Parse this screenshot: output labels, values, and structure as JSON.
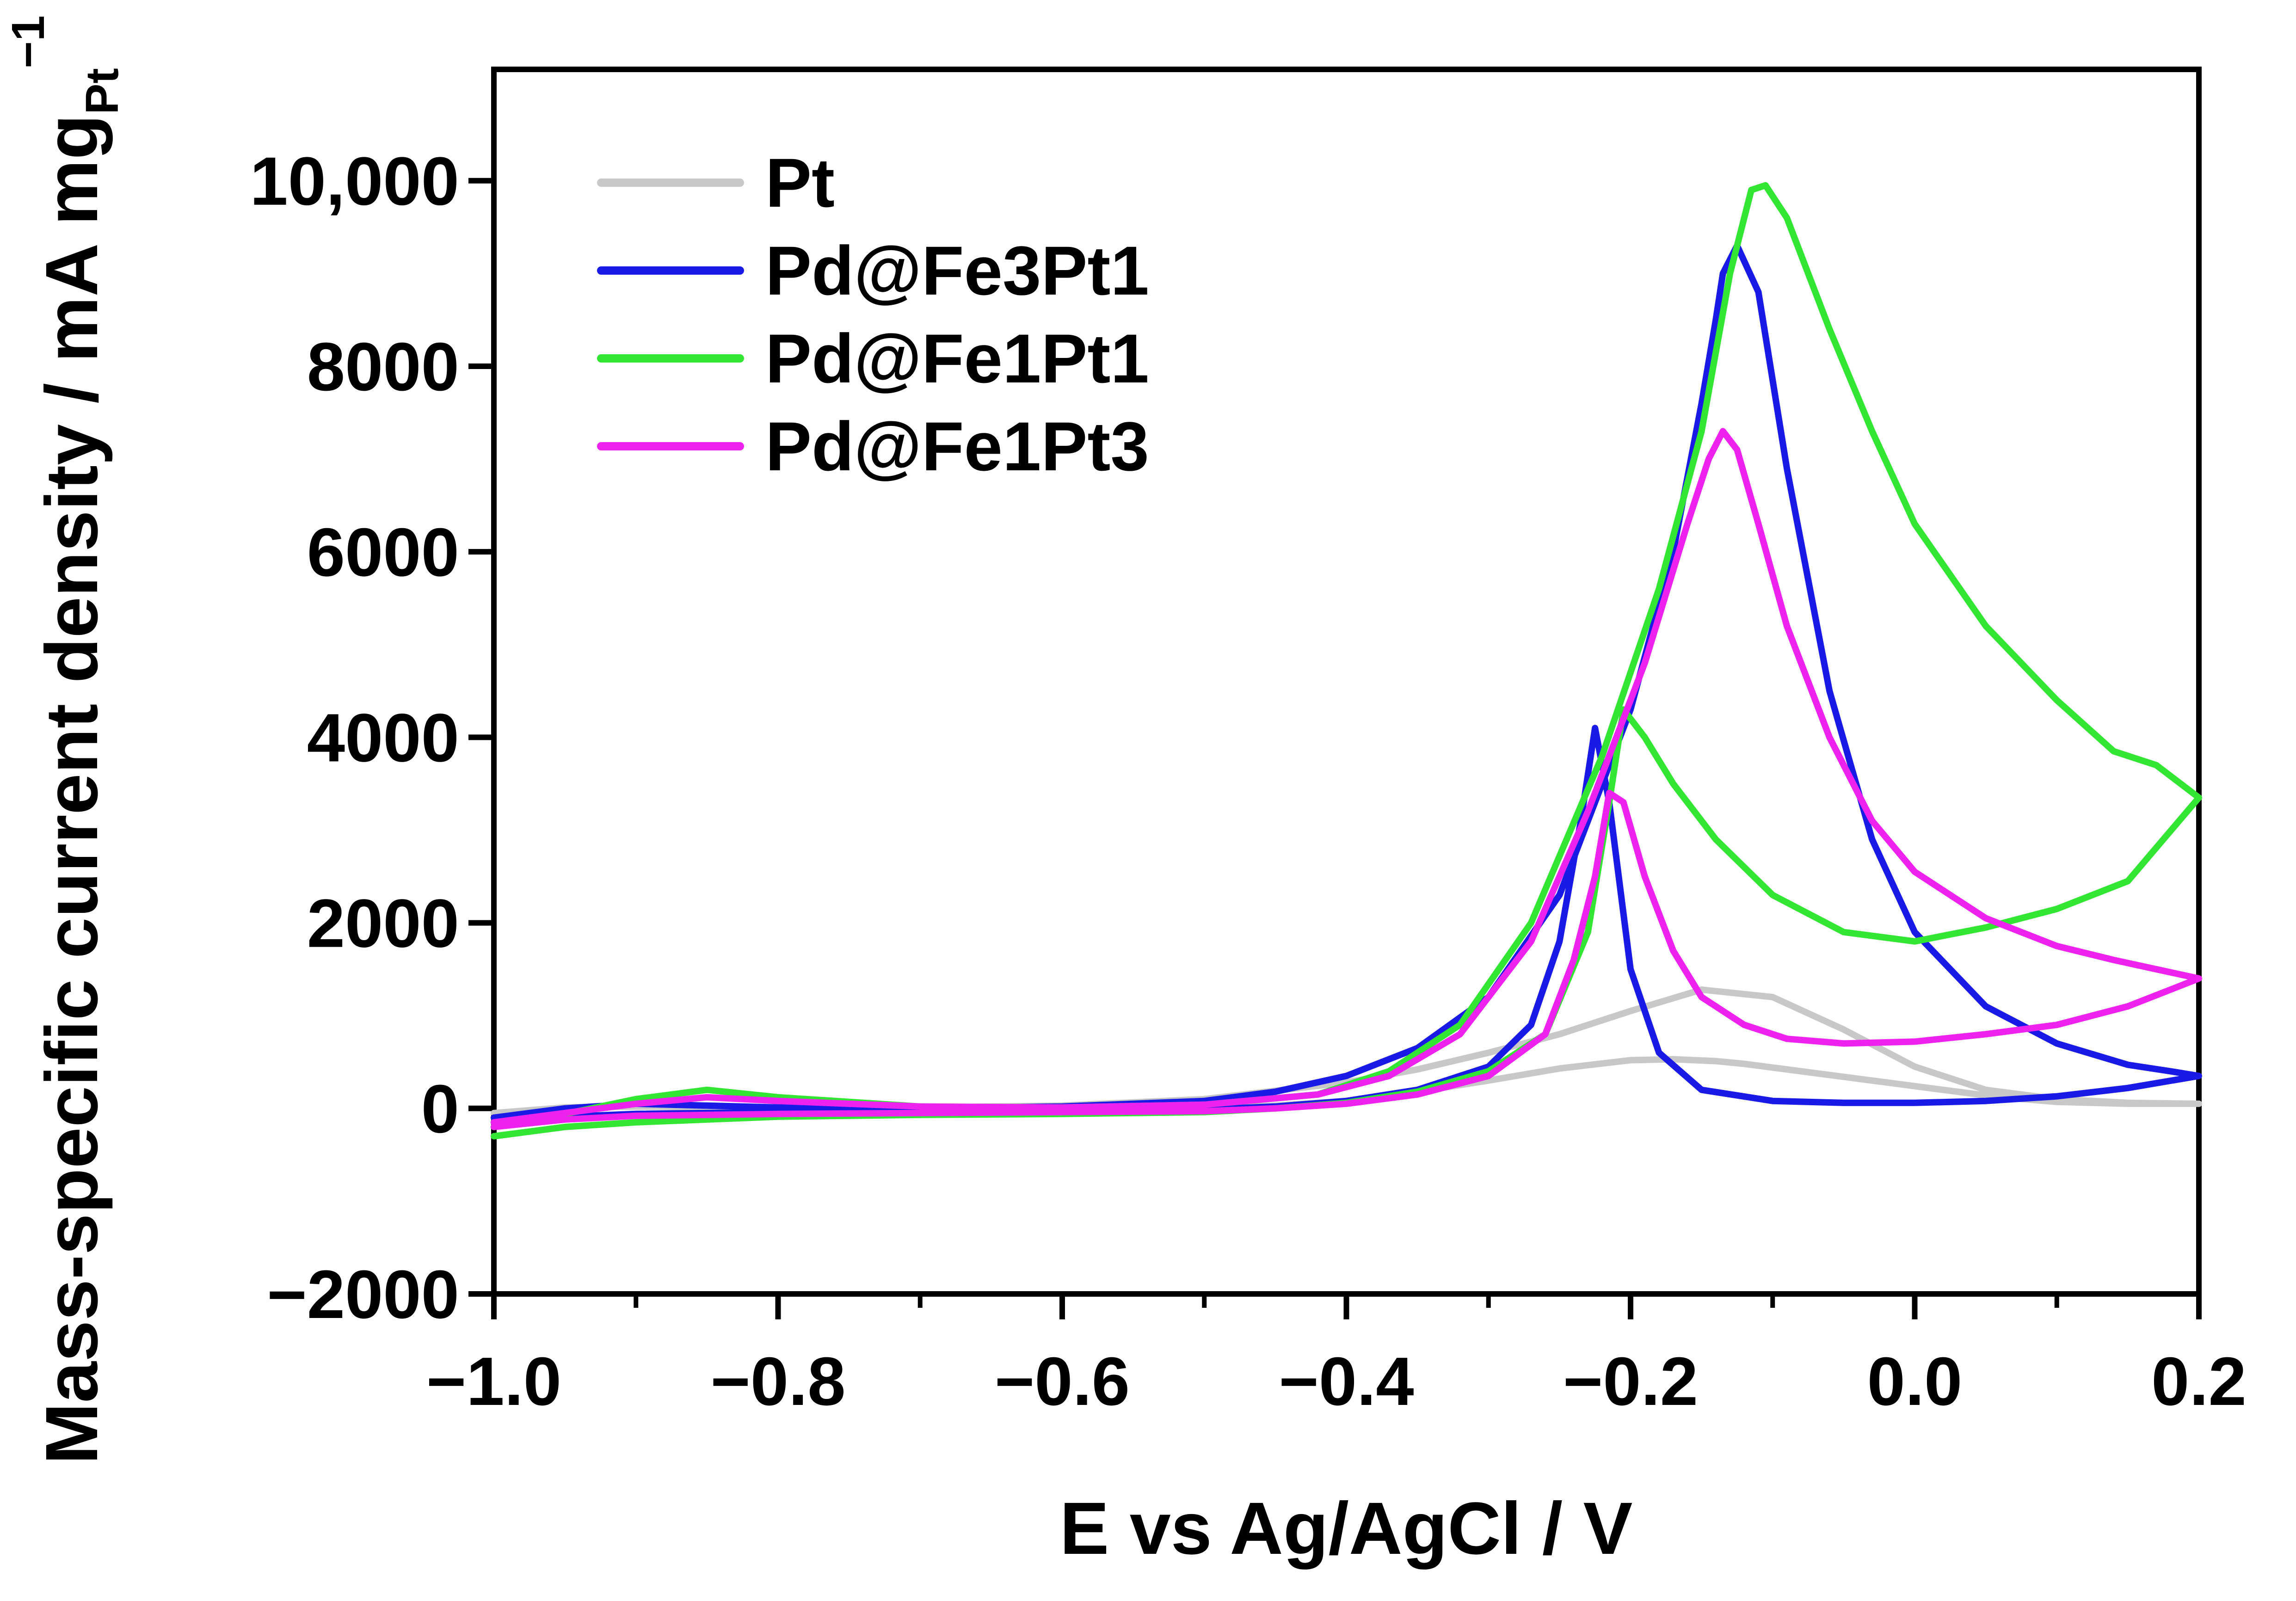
{
  "chart_data": {
    "type": "line",
    "title": "",
    "xlabel": "E vs Ag/AgCl / V",
    "ylabel": {
      "main": "Mass-specific current density / mA mg",
      "subscript": "Pt",
      "superscript": "−1"
    },
    "xlim": [
      -1.0,
      0.2
    ],
    "ylim": [
      -2000,
      11200
    ],
    "x_ticks": [
      -1.0,
      -0.8,
      -0.6,
      -0.4,
      -0.2,
      0.0,
      0.2
    ],
    "x_tick_labels": [
      "−1.0",
      "−0.8",
      "−0.6",
      "−0.4",
      "−0.2",
      "0.0",
      "0.2"
    ],
    "x_minor_ticks": [
      -0.9,
      -0.7,
      -0.5,
      -0.3,
      -0.1,
      0.1
    ],
    "y_ticks": [
      -2000,
      0,
      2000,
      4000,
      6000,
      8000,
      10000
    ],
    "y_tick_labels": [
      "−2000",
      "0",
      "2000",
      "4000",
      "6000",
      "8000",
      "10,000"
    ],
    "grid": false,
    "legend_position": "top-left",
    "series": [
      {
        "name": "Pt",
        "color": "#c8c8c8",
        "x": [
          -1.0,
          -0.9,
          -0.8,
          -0.7,
          -0.6,
          -0.5,
          -0.45,
          -0.4,
          -0.35,
          -0.3,
          -0.25,
          -0.2,
          -0.17,
          -0.14,
          -0.12,
          -0.1,
          -0.08,
          -0.05,
          -0.02,
          0.02,
          0.06,
          0.1,
          0.15,
          0.2,
          0.15,
          0.1,
          0.05,
          0.0,
          -0.05,
          -0.1,
          -0.15,
          -0.2,
          -0.25,
          -0.3,
          -0.35,
          -0.4,
          -0.5,
          -0.6,
          -0.7,
          -0.8,
          -0.9,
          -0.95,
          -1.0
        ],
        "y": [
          -150,
          -60,
          -30,
          -20,
          -10,
          0,
          30,
          80,
          180,
          300,
          430,
          520,
          530,
          510,
          480,
          440,
          400,
          340,
          280,
          200,
          120,
          70,
          50,
          50,
          60,
          100,
          200,
          450,
          850,
          1200,
          1280,
          1050,
          800,
          600,
          420,
          280,
          100,
          30,
          10,
          10,
          20,
          10,
          -50
        ]
      },
      {
        "name": "Pd@Fe3Pt1",
        "color": "#1a1ae6",
        "x": [
          -1.0,
          -0.95,
          -0.9,
          -0.8,
          -0.7,
          -0.6,
          -0.5,
          -0.45,
          -0.4,
          -0.35,
          -0.3,
          -0.27,
          -0.25,
          -0.235,
          -0.225,
          -0.215,
          -0.2,
          -0.18,
          -0.15,
          -0.1,
          -0.05,
          0.0,
          0.05,
          0.1,
          0.15,
          0.2,
          0.18,
          0.15,
          0.1,
          0.05,
          0.0,
          -0.03,
          -0.06,
          -0.09,
          -0.11,
          -0.125,
          -0.135,
          -0.14,
          -0.15,
          -0.17,
          -0.2,
          -0.25,
          -0.3,
          -0.35,
          -0.4,
          -0.45,
          -0.5,
          -0.6,
          -0.7,
          -0.8,
          -0.9,
          -0.95,
          -1.0
        ],
        "y": [
          -150,
          -90,
          -60,
          -40,
          -30,
          -20,
          -10,
          20,
          80,
          200,
          450,
          900,
          1800,
          3100,
          4100,
          3300,
          1500,
          600,
          200,
          80,
          60,
          60,
          80,
          130,
          220,
          350,
          400,
          470,
          700,
          1100,
          1900,
          2900,
          4500,
          6900,
          8800,
          9300,
          9000,
          8500,
          7600,
          6000,
          4300,
          2300,
          1200,
          650,
          350,
          180,
          80,
          20,
          0,
          10,
          50,
          0,
          -100
        ]
      },
      {
        "name": "Pd@Fe1Pt1",
        "color": "#33e633",
        "x": [
          -1.0,
          -0.95,
          -0.9,
          -0.8,
          -0.7,
          -0.6,
          -0.5,
          -0.45,
          -0.4,
          -0.35,
          -0.3,
          -0.26,
          -0.23,
          -0.215,
          -0.205,
          -0.19,
          -0.17,
          -0.14,
          -0.1,
          -0.05,
          0.0,
          0.05,
          0.1,
          0.15,
          0.2,
          0.17,
          0.14,
          0.1,
          0.05,
          0.0,
          -0.03,
          -0.06,
          -0.09,
          -0.105,
          -0.115,
          -0.13,
          -0.15,
          -0.18,
          -0.22,
          -0.27,
          -0.32,
          -0.37,
          -0.42,
          -0.5,
          -0.6,
          -0.7,
          -0.8,
          -0.85,
          -0.9,
          -0.95,
          -1.0
        ],
        "y": [
          -300,
          -200,
          -150,
          -90,
          -70,
          -60,
          -40,
          0,
          60,
          180,
          400,
          800,
          1900,
          3300,
          4300,
          4000,
          3500,
          2900,
          2300,
          1900,
          1800,
          1950,
          2150,
          2450,
          3350,
          3700,
          3850,
          4400,
          5200,
          6300,
          7300,
          8400,
          9600,
          9950,
          9900,
          9000,
          7300,
          5600,
          3800,
          2000,
          900,
          400,
          150,
          40,
          10,
          20,
          120,
          200,
          100,
          -60,
          -200
        ]
      },
      {
        "name": "Pd@Fe1Pt3",
        "color": "#ee22ee",
        "x": [
          -1.0,
          -0.95,
          -0.9,
          -0.8,
          -0.7,
          -0.6,
          -0.5,
          -0.45,
          -0.4,
          -0.35,
          -0.3,
          -0.26,
          -0.24,
          -0.225,
          -0.215,
          -0.205,
          -0.19,
          -0.17,
          -0.15,
          -0.12,
          -0.09,
          -0.05,
          0.0,
          0.05,
          0.1,
          0.15,
          0.2,
          0.17,
          0.14,
          0.1,
          0.05,
          0.0,
          -0.03,
          -0.06,
          -0.09,
          -0.11,
          -0.125,
          -0.135,
          -0.145,
          -0.16,
          -0.19,
          -0.23,
          -0.27,
          -0.32,
          -0.37,
          -0.42,
          -0.5,
          -0.6,
          -0.7,
          -0.8,
          -0.85,
          -0.9,
          -0.95,
          -1.0
        ],
        "y": [
          -200,
          -120,
          -80,
          -60,
          -50,
          -40,
          -30,
          0,
          50,
          150,
          350,
          800,
          1600,
          2500,
          3400,
          3300,
          2500,
          1700,
          1200,
          900,
          750,
          700,
          720,
          800,
          900,
          1100,
          1400,
          1500,
          1600,
          1750,
          2050,
          2550,
          3100,
          4000,
          5200,
          6300,
          7100,
          7300,
          7000,
          6300,
          4800,
          3200,
          1800,
          800,
          350,
          150,
          40,
          10,
          20,
          80,
          120,
          50,
          -50,
          -150
        ]
      }
    ]
  }
}
